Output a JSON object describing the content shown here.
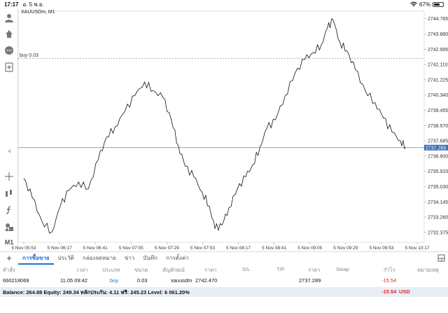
{
  "status": {
    "time": "17:17",
    "date": "อ. 5 พ.ย.",
    "battery": "67%",
    "battery_level": 0.67
  },
  "chart": {
    "symbol": "XAUUSDm, M1",
    "buy_line_label": "buy 0.03",
    "current_price": "2737.289"
  },
  "chart_data": {
    "type": "line",
    "x": [
      "5 Nov 05:53",
      "5 Nov 06:17",
      "5 Nov 06:41",
      "5 Nov 07:05",
      "5 Nov 07:29",
      "5 Nov 07:53",
      "5 Nov 08:17",
      "5 Nov 08:41",
      "5 Nov 09:05",
      "5 Nov 09:29",
      "5 Nov 09:53",
      "5 Nov 10:17"
    ],
    "y_ticks": [
      "2744.765",
      "2743.880",
      "2742.995",
      "2742.110",
      "2741.225",
      "2740.340",
      "2739.455",
      "2738.570",
      "2737.685",
      "2736.800",
      "2735.915",
      "2735.030",
      "2734.145",
      "2733.260",
      "2732.375"
    ],
    "ylim": [
      2731.8,
      2745.2
    ],
    "buy_level": 2742.47,
    "current": 2737.289,
    "values": [
      [
        0,
        2735.5
      ],
      [
        0.6,
        2734.4
      ],
      [
        1.3,
        2733.0
      ],
      [
        2.0,
        2732.4
      ],
      [
        2.6,
        2733.9
      ],
      [
        3.2,
        2734.8
      ],
      [
        3.9,
        2735.3
      ],
      [
        4.6,
        2734.9
      ],
      [
        5.3,
        2736.6
      ],
      [
        5.9,
        2737.9
      ],
      [
        6.5,
        2738.5
      ],
      [
        7.2,
        2739.4
      ],
      [
        7.9,
        2740.3
      ],
      [
        8.6,
        2741.1
      ],
      [
        9.2,
        2740.6
      ],
      [
        9.9,
        2740.2
      ],
      [
        10.5,
        2738.9
      ],
      [
        11.0,
        2737.4
      ],
      [
        11.5,
        2736.2
      ],
      [
        12.1,
        2735.6
      ],
      [
        12.7,
        2734.7
      ],
      [
        13.2,
        2733.9
      ],
      [
        13.6,
        2732.6
      ],
      [
        14.1,
        2732.8
      ],
      [
        14.6,
        2733.8
      ],
      [
        15.2,
        2734.9
      ],
      [
        15.8,
        2735.6
      ],
      [
        16.3,
        2736.3
      ],
      [
        16.8,
        2737.3
      ],
      [
        17.3,
        2738.4
      ],
      [
        17.9,
        2738.9
      ],
      [
        18.6,
        2740.3
      ],
      [
        19.3,
        2741.6
      ],
      [
        20.0,
        2742.4
      ],
      [
        20.6,
        2742.8
      ],
      [
        21.2,
        2743.3
      ],
      [
        21.6,
        2744.2
      ],
      [
        22.0,
        2744.7
      ],
      [
        22.5,
        2743.4
      ],
      [
        23.0,
        2742.9
      ],
      [
        23.6,
        2741.8
      ],
      [
        24.3,
        2740.6
      ],
      [
        25.0,
        2739.9
      ],
      [
        25.6,
        2739.0
      ],
      [
        26.2,
        2738.2
      ],
      [
        26.8,
        2737.7
      ],
      [
        27.2,
        2737.3
      ]
    ]
  },
  "tabs": {
    "add": "+",
    "items": [
      "การซื้อขาย",
      "ประวัติ",
      "กล่องจดหมาย",
      "ข่าว",
      "บันทึก",
      "การตั้งค่า"
    ]
  },
  "table": {
    "headers": {
      "order": "คำสั่ง",
      "time": "เวลา",
      "type": "ประเภท",
      "size": "ขนาด",
      "symbol": "สัญลักษณ์",
      "price": "ราคา",
      "sl": "S/L",
      "tp": "T/P",
      "price2": "ราคา",
      "swap": "Swap",
      "profit": "กำไร",
      "note": "หมายเหตุ"
    },
    "row": {
      "order": "660218069",
      "time": "11.05 09:42",
      "type": "buy",
      "size": "0.03",
      "symbol": "xauusdm",
      "price": "2742.470",
      "price2": "2737.289",
      "profit": "-15.54"
    }
  },
  "balance": {
    "text": "Balance: 264.88 Equity: 249.34 หลักประกัน: 4.11 ฟรี: 245.23 Level: 6 061.20%",
    "profit": "-15.54",
    "currency": "USD"
  }
}
